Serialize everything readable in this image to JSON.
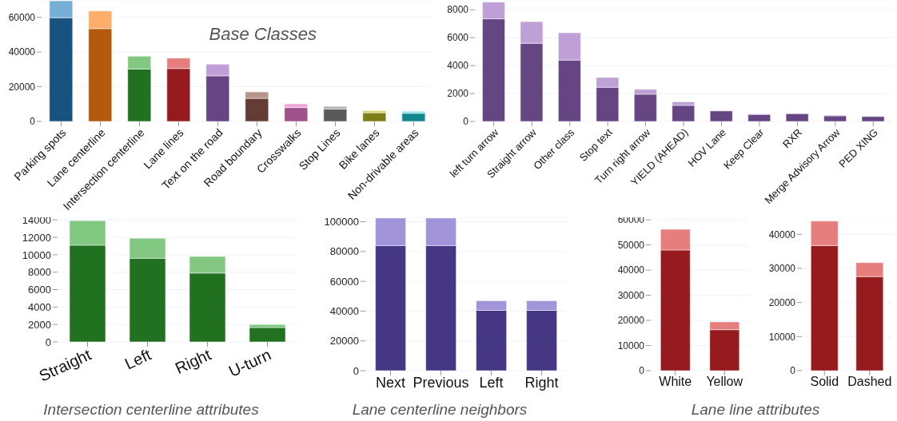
{
  "chart_data": [
    {
      "type": "bar",
      "title": "Base Classes",
      "stacked": true,
      "grid": "y",
      "categories": [
        "Parking spots",
        "Lane centerline",
        "Intersection centerline",
        "Lane lines",
        "Text on the road",
        "Road boundary",
        "Crosswalks",
        "Stop Lines",
        "Bike lanes",
        "Non-drivable areas"
      ],
      "ylim": [
        0,
        70000
      ],
      "yticks": [
        0,
        20000,
        40000,
        60000
      ],
      "series": [
        {
          "colors": [
            "#18527f",
            "#b35a0e",
            "#217120",
            "#961b1f",
            "#664682",
            "#633c34",
            "#9f5189",
            "#5a5a5a",
            "#7f7f1a",
            "#13878f"
          ],
          "values": [
            59800,
            53500,
            30200,
            30500,
            26300,
            13300,
            8000,
            7100,
            5000,
            4700
          ]
        },
        {
          "colors": [
            "#77aed6",
            "#fdae6b",
            "#82c882",
            "#e67e7e",
            "#bea0d6",
            "#b7958c",
            "#f0a8dc",
            "#b4b4b4",
            "#d4d46a",
            "#7fdce6"
          ],
          "values": [
            9700,
            10200,
            7400,
            6000,
            6700,
            3700,
            2200,
            1600,
            1200,
            1100
          ]
        }
      ]
    },
    {
      "type": "bar",
      "stacked": true,
      "grid": "y",
      "categories": [
        "left turn arrow",
        "Straight arrow",
        "Other class",
        "Stop text",
        "Turn right arrow",
        "YIELD (AHEAD)",
        "HOV Lane",
        "Keep Clear",
        "RXR",
        "Merge Advisory Arrow",
        "PED XING"
      ],
      "ylim": [
        0,
        8700
      ],
      "yticks": [
        0,
        2000,
        4000,
        6000,
        8000
      ],
      "series": [
        {
          "color": "#664682",
          "values": [
            7350,
            5600,
            4400,
            2450,
            1950,
            1150,
            750,
            500,
            550,
            400,
            350
          ]
        },
        {
          "color": "#bea0d6",
          "values": [
            1200,
            1550,
            1950,
            700,
            350,
            250,
            0,
            50,
            0,
            50,
            0
          ]
        }
      ]
    },
    {
      "type": "bar",
      "title": "Intersection centerline attributes",
      "stacked": true,
      "grid": "y",
      "categories": [
        "Straight",
        "Left",
        "Right",
        "U-turn"
      ],
      "ylim": [
        0,
        14300
      ],
      "yticks": [
        0,
        2000,
        4000,
        6000,
        8000,
        10000,
        12000,
        14000
      ],
      "series": [
        {
          "color": "#217120",
          "values": [
            11100,
            9600,
            7900,
            1650
          ]
        },
        {
          "color": "#82c882",
          "values": [
            2800,
            2300,
            1900,
            350
          ]
        }
      ]
    },
    {
      "type": "bar",
      "title": "Lane centerline neighbors",
      "stacked": true,
      "grid": "y",
      "categories": [
        "Next",
        "Previous",
        "Left",
        "Right"
      ],
      "ylim": [
        0,
        103000
      ],
      "yticks": [
        0,
        20000,
        40000,
        60000,
        80000,
        100000
      ],
      "series": [
        {
          "color": "#453784",
          "values": [
            84000,
            84000,
            40500,
            40500
          ]
        },
        {
          "color": "#a294d9",
          "values": [
            18500,
            18500,
            6500,
            6500
          ]
        }
      ]
    },
    {
      "type": "bar",
      "title": "Lane line attributes",
      "stacked": true,
      "grid": "y",
      "categories": [
        "White",
        "Yellow"
      ],
      "ylim": [
        0,
        61000
      ],
      "yticks": [
        0,
        10000,
        20000,
        30000,
        40000,
        50000,
        60000
      ],
      "series": [
        {
          "color": "#961b1f",
          "values": [
            48000,
            16300
          ]
        },
        {
          "color": "#e67e7e",
          "values": [
            8200,
            3100
          ]
        }
      ]
    },
    {
      "type": "bar",
      "stacked": true,
      "grid": "y",
      "categories": [
        "Solid",
        "Dashed"
      ],
      "ylim": [
        0,
        45000
      ],
      "yticks": [
        0,
        10000,
        20000,
        30000,
        40000
      ],
      "series": [
        {
          "color": "#961b1f",
          "values": [
            36700,
            27600
          ]
        },
        {
          "color": "#e67e7e",
          "values": [
            7200,
            4100
          ]
        }
      ]
    }
  ]
}
